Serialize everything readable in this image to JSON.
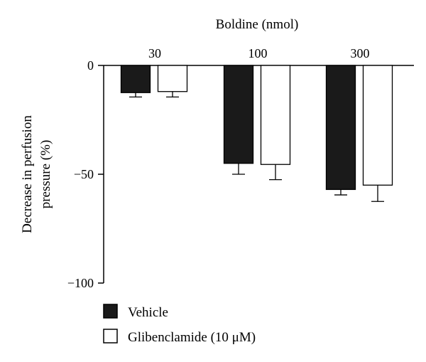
{
  "chart_data": {
    "type": "bar",
    "title": "Boldine (nmol)",
    "ylabel": "Decrease in perfusion pressure (%)",
    "ylabel_lines": [
      "Decrease in perfusion",
      "pressure (%)"
    ],
    "xlabel": "",
    "categories": [
      "30",
      "100",
      "300"
    ],
    "y_ticks": [
      "0",
      "−50",
      "−100"
    ],
    "y_tick_values": [
      0,
      -50,
      -100
    ],
    "ylim": [
      -100,
      0
    ],
    "grid": false,
    "legend_position": "bottom-left",
    "series": [
      {
        "name": "Vehicle",
        "fill": "#1a1a1a",
        "values": [
          -12.5,
          -45,
          -57
        ],
        "errors": [
          2,
          5,
          2.5
        ]
      },
      {
        "name": "Glibenclamide (10 μM)",
        "fill": "#ffffff",
        "values": [
          -12,
          -45.5,
          -55
        ],
        "errors": [
          2.5,
          7,
          7.5
        ]
      }
    ]
  }
}
